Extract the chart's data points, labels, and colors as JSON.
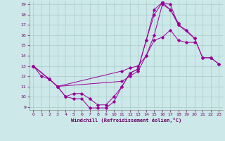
{
  "xlabel": "Windchill (Refroidissement éolien,°C)",
  "bg_color": "#cce8e8",
  "grid_color": "#aacccc",
  "line_color": "#990099",
  "xlim": [
    -0.5,
    23.5
  ],
  "ylim": [
    8.7,
    19.3
  ],
  "xticks": [
    0,
    1,
    2,
    3,
    4,
    5,
    6,
    7,
    8,
    9,
    10,
    11,
    12,
    13,
    14,
    15,
    16,
    17,
    18,
    19,
    20,
    21,
    22,
    23
  ],
  "yticks": [
    9,
    10,
    11,
    12,
    13,
    14,
    15,
    16,
    17,
    18,
    19
  ],
  "line1_x": [
    0,
    1,
    2,
    3,
    4,
    5,
    6,
    7,
    8,
    9,
    10,
    11,
    12,
    13,
    14,
    15,
    16,
    17,
    18,
    20,
    21,
    22,
    23
  ],
  "line1_y": [
    13,
    12,
    11.7,
    11,
    10,
    9.8,
    9.8,
    8.9,
    8.9,
    8.9,
    9.5,
    11,
    12.3,
    12.7,
    15.5,
    18,
    19.2,
    19,
    17,
    15.7,
    13.8,
    13.8,
    13.2
  ],
  "line2_x": [
    0,
    2,
    3,
    4,
    5,
    6,
    7,
    8,
    9,
    10,
    11,
    12,
    13,
    14,
    15,
    16,
    17,
    18
  ],
  "line2_y": [
    13,
    11.7,
    11,
    10,
    10.3,
    10.3,
    9.8,
    9.2,
    9.2,
    10,
    11,
    12.3,
    12.7,
    15.5,
    18.5,
    19.2,
    18.5,
    17.2
  ],
  "line3_x": [
    0,
    2,
    3,
    11,
    12,
    13,
    14,
    15,
    16,
    17,
    18,
    19,
    20,
    21,
    22,
    23
  ],
  "line3_y": [
    13,
    11.7,
    11,
    12.5,
    12.8,
    13,
    14,
    16,
    19,
    18.5,
    17,
    16.5,
    15.7,
    13.8,
    13.8,
    13.2
  ],
  "line4_x": [
    0,
    2,
    3,
    11,
    12,
    13,
    14,
    15,
    16,
    17,
    18,
    19,
    20
  ],
  "line4_y": [
    13,
    11.7,
    11,
    11.5,
    12,
    12.5,
    14,
    15.5,
    15.8,
    16.5,
    15.5,
    15.3,
    15.3
  ]
}
